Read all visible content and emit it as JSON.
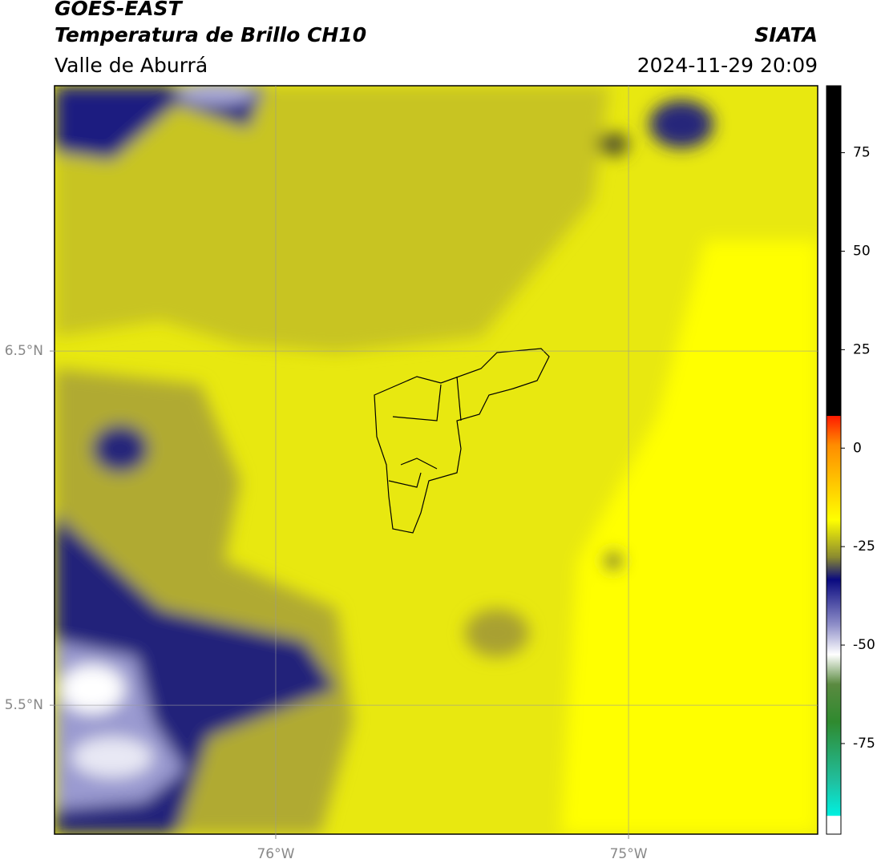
{
  "header": {
    "title": "GOES-EAST",
    "subtitle": "Temperatura de Brillo CH10",
    "source": "SIATA",
    "region": "Valle de Aburrá",
    "datetime": "2024-11-29 20:09"
  },
  "map": {
    "lonlim": [
      -76.627,
      -74.464
    ],
    "latlim": [
      5.136,
      7.249
    ],
    "lonticks": [
      {
        "value": -76,
        "label": "76°W"
      },
      {
        "value": -75,
        "label": "75°W"
      }
    ],
    "latticks": [
      {
        "value": 6.5,
        "label": "6.5°N"
      },
      {
        "value": 5.5,
        "label": "5.5°N"
      }
    ],
    "grid": true
  },
  "colorbar": {
    "lim": [
      -98,
      92
    ],
    "ticks": [
      75,
      50,
      25,
      0,
      -25,
      -50,
      -75
    ]
  }
}
